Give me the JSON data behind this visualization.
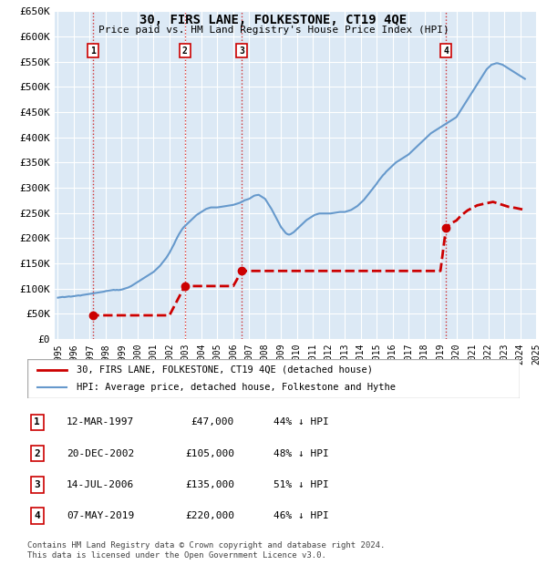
{
  "title": "30, FIRS LANE, FOLKESTONE, CT19 4QE",
  "subtitle": "Price paid vs. HM Land Registry's House Price Index (HPI)",
  "ylabel": "",
  "xlabel": "",
  "ylim": [
    0,
    650000
  ],
  "yticks": [
    0,
    50000,
    100000,
    150000,
    200000,
    250000,
    300000,
    350000,
    400000,
    450000,
    500000,
    550000,
    600000,
    650000
  ],
  "ytick_labels": [
    "£0",
    "£50K",
    "£100K",
    "£150K",
    "£200K",
    "£250K",
    "£300K",
    "£350K",
    "£400K",
    "£450K",
    "£500K",
    "£550K",
    "£600K",
    "£650K"
  ],
  "bg_color": "#dce9f5",
  "plot_bg_color": "#dce9f5",
  "grid_color": "#ffffff",
  "legend_items": [
    {
      "label": "30, FIRS LANE, FOLKESTONE, CT19 4QE (detached house)",
      "color": "#cc0000",
      "lw": 2
    },
    {
      "label": "HPI: Average price, detached house, Folkestone and Hythe",
      "color": "#6699cc",
      "lw": 1.5
    }
  ],
  "sale_points": [
    {
      "date_num": 1997.19,
      "price": 47000,
      "label": "1"
    },
    {
      "date_num": 2002.96,
      "price": 105000,
      "label": "2"
    },
    {
      "date_num": 2006.54,
      "price": 135000,
      "label": "3"
    },
    {
      "date_num": 2019.35,
      "price": 220000,
      "label": "4"
    }
  ],
  "table_rows": [
    {
      "num": "1",
      "date": "12-MAR-1997",
      "price": "£47,000",
      "note": "44% ↓ HPI"
    },
    {
      "num": "2",
      "date": "20-DEC-2002",
      "price": "£105,000",
      "note": "48% ↓ HPI"
    },
    {
      "num": "3",
      "date": "14-JUL-2006",
      "price": "£135,000",
      "note": "51% ↓ HPI"
    },
    {
      "num": "4",
      "date": "07-MAY-2019",
      "price": "£220,000",
      "note": "46% ↓ HPI"
    }
  ],
  "footer": "Contains HM Land Registry data © Crown copyright and database right 2024.\nThis data is licensed under the Open Government Licence v3.0.",
  "hpi_data": {
    "years": [
      1995.0,
      1995.1,
      1995.2,
      1995.3,
      1995.4,
      1995.5,
      1995.6,
      1995.7,
      1995.8,
      1995.9,
      1996.0,
      1996.1,
      1996.2,
      1996.3,
      1996.4,
      1996.5,
      1996.6,
      1996.7,
      1996.8,
      1996.9,
      1997.0,
      1997.1,
      1997.2,
      1997.3,
      1997.4,
      1997.5,
      1997.6,
      1997.7,
      1997.8,
      1997.9,
      1998.0,
      1998.1,
      1998.2,
      1998.3,
      1998.4,
      1998.5,
      1998.6,
      1998.7,
      1998.8,
      1998.9,
      1999.0,
      1999.1,
      1999.2,
      1999.3,
      1999.4,
      1999.5,
      1999.6,
      1999.7,
      1999.8,
      1999.9,
      2000.0,
      2000.1,
      2000.2,
      2000.3,
      2000.4,
      2000.5,
      2000.6,
      2000.7,
      2000.8,
      2000.9,
      2001.0,
      2001.1,
      2001.2,
      2001.3,
      2001.4,
      2001.5,
      2001.6,
      2001.7,
      2001.8,
      2001.9,
      2002.0,
      2002.1,
      2002.2,
      2002.3,
      2002.4,
      2002.5,
      2002.6,
      2002.7,
      2002.8,
      2002.9,
      2003.0,
      2003.1,
      2003.2,
      2003.3,
      2003.4,
      2003.5,
      2003.6,
      2003.7,
      2003.8,
      2003.9,
      2004.0,
      2004.1,
      2004.2,
      2004.3,
      2004.4,
      2004.5,
      2004.6,
      2004.7,
      2004.8,
      2004.9,
      2005.0,
      2005.1,
      2005.2,
      2005.3,
      2005.4,
      2005.5,
      2005.6,
      2005.7,
      2005.8,
      2005.9,
      2006.0,
      2006.1,
      2006.2,
      2006.3,
      2006.4,
      2006.5,
      2006.6,
      2006.7,
      2006.8,
      2006.9,
      2007.0,
      2007.1,
      2007.2,
      2007.3,
      2007.4,
      2007.5,
      2007.6,
      2007.7,
      2007.8,
      2007.9,
      2008.0,
      2008.1,
      2008.2,
      2008.3,
      2008.4,
      2008.5,
      2008.6,
      2008.7,
      2008.8,
      2008.9,
      2009.0,
      2009.1,
      2009.2,
      2009.3,
      2009.4,
      2009.5,
      2009.6,
      2009.7,
      2009.8,
      2009.9,
      2010.0,
      2010.1,
      2010.2,
      2010.3,
      2010.4,
      2010.5,
      2010.6,
      2010.7,
      2010.8,
      2010.9,
      2011.0,
      2011.1,
      2011.2,
      2011.3,
      2011.4,
      2011.5,
      2011.6,
      2011.7,
      2011.8,
      2011.9,
      2012.0,
      2012.1,
      2012.2,
      2012.3,
      2012.4,
      2012.5,
      2012.6,
      2012.7,
      2012.8,
      2012.9,
      2013.0,
      2013.1,
      2013.2,
      2013.3,
      2013.4,
      2013.5,
      2013.6,
      2013.7,
      2013.8,
      2013.9,
      2014.0,
      2014.1,
      2014.2,
      2014.3,
      2014.4,
      2014.5,
      2014.6,
      2014.7,
      2014.8,
      2014.9,
      2015.0,
      2015.1,
      2015.2,
      2015.3,
      2015.4,
      2015.5,
      2015.6,
      2015.7,
      2015.8,
      2015.9,
      2016.0,
      2016.1,
      2016.2,
      2016.3,
      2016.4,
      2016.5,
      2016.6,
      2016.7,
      2016.8,
      2016.9,
      2017.0,
      2017.1,
      2017.2,
      2017.3,
      2017.4,
      2017.5,
      2017.6,
      2017.7,
      2017.8,
      2017.9,
      2018.0,
      2018.1,
      2018.2,
      2018.3,
      2018.4,
      2018.5,
      2018.6,
      2018.7,
      2018.8,
      2018.9,
      2019.0,
      2019.1,
      2019.2,
      2019.3,
      2019.4,
      2019.5,
      2019.6,
      2019.7,
      2019.8,
      2019.9,
      2020.0,
      2020.1,
      2020.2,
      2020.3,
      2020.4,
      2020.5,
      2020.6,
      2020.7,
      2020.8,
      2020.9,
      2021.0,
      2021.1,
      2021.2,
      2021.3,
      2021.4,
      2021.5,
      2021.6,
      2021.7,
      2021.8,
      2021.9,
      2022.0,
      2022.1,
      2022.2,
      2022.3,
      2022.4,
      2022.5,
      2022.6,
      2022.7,
      2022.8,
      2022.9,
      2023.0,
      2023.1,
      2023.2,
      2023.3,
      2023.4,
      2023.5,
      2023.6,
      2023.7,
      2023.8,
      2023.9,
      2024.0,
      2024.1,
      2024.2,
      2024.3
    ],
    "values": [
      82000,
      82500,
      83000,
      83500,
      83000,
      83500,
      84000,
      84500,
      84000,
      84500,
      85000,
      85500,
      86000,
      86500,
      86000,
      87000,
      87500,
      88000,
      88500,
      89000,
      89500,
      90000,
      90500,
      91000,
      91500,
      92000,
      92500,
      93000,
      93500,
      94000,
      95000,
      95500,
      96000,
      96500,
      97000,
      97500,
      97000,
      97500,
      97000,
      97500,
      98000,
      99000,
      100000,
      101000,
      102000,
      103500,
      105000,
      107000,
      109000,
      111000,
      113000,
      115000,
      117000,
      119000,
      121000,
      123000,
      125000,
      127000,
      129000,
      131000,
      133000,
      136000,
      139000,
      142000,
      145000,
      149000,
      153000,
      157000,
      161000,
      166000,
      171000,
      177000,
      183000,
      189000,
      196000,
      202000,
      208000,
      213000,
      218000,
      222000,
      225000,
      228000,
      231000,
      234000,
      237000,
      240000,
      243000,
      246000,
      248000,
      250000,
      252000,
      254000,
      256000,
      258000,
      259000,
      260000,
      261000,
      261000,
      261000,
      261000,
      261000,
      261500,
      262000,
      262500,
      263000,
      263500,
      264000,
      264500,
      265000,
      265500,
      266000,
      267000,
      268000,
      269000,
      270000,
      271500,
      273000,
      275000,
      276000,
      277000,
      278000,
      280000,
      282000,
      284000,
      285000,
      285500,
      286000,
      284000,
      282000,
      280000,
      278000,
      273000,
      268000,
      263000,
      258000,
      252000,
      246000,
      240000,
      234000,
      228000,
      222000,
      218000,
      214000,
      210000,
      208000,
      207000,
      208000,
      210000,
      212000,
      215000,
      218000,
      221000,
      224000,
      227000,
      230000,
      233000,
      236000,
      238000,
      240000,
      242000,
      244000,
      246000,
      247000,
      248000,
      249000,
      249000,
      249000,
      249000,
      249000,
      249000,
      249000,
      249000,
      249500,
      250000,
      250500,
      251000,
      251500,
      252000,
      252000,
      252000,
      252000,
      253000,
      254000,
      255000,
      256000,
      258000,
      260000,
      262000,
      264000,
      267000,
      270000,
      273000,
      276000,
      280000,
      284000,
      288000,
      292000,
      296000,
      300000,
      304000,
      308000,
      313000,
      317000,
      321000,
      325000,
      328000,
      332000,
      335000,
      338000,
      341000,
      344000,
      347000,
      350000,
      352000,
      354000,
      356000,
      358000,
      360000,
      362000,
      364000,
      366000,
      369000,
      372000,
      375000,
      378000,
      381000,
      384000,
      387000,
      390000,
      393000,
      396000,
      399000,
      402000,
      405000,
      408000,
      410000,
      412000,
      414000,
      416000,
      418000,
      420000,
      422000,
      424000,
      426000,
      428000,
      430000,
      432000,
      434000,
      436000,
      438000,
      440000,
      445000,
      450000,
      455000,
      460000,
      465000,
      470000,
      475000,
      480000,
      485000,
      490000,
      495000,
      500000,
      505000,
      510000,
      515000,
      520000,
      525000,
      530000,
      535000,
      538000,
      541000,
      544000,
      545000,
      546000,
      547000,
      547000,
      546000,
      545000,
      544000,
      542000,
      540000,
      538000,
      536000,
      534000,
      532000,
      530000,
      528000,
      526000,
      524000,
      522000,
      520000,
      518000,
      516000
    ]
  },
  "sold_data": {
    "years": [
      1997.0,
      1997.19,
      2002.0,
      2002.96,
      2006.0,
      2006.54,
      2019.0,
      2019.35,
      2019.5,
      2019.7,
      2020.0,
      2020.3,
      2020.7,
      2021.0,
      2021.3,
      2021.7,
      2022.0,
      2022.3,
      2022.7,
      2023.0,
      2023.3,
      2023.7,
      2024.0,
      2024.3
    ],
    "values": [
      47000,
      47000,
      47000,
      105000,
      105000,
      135000,
      135000,
      220000,
      225000,
      230000,
      235000,
      245000,
      255000,
      260000,
      265000,
      268000,
      270000,
      272000,
      268000,
      265000,
      262000,
      260000,
      258000,
      256000
    ]
  }
}
